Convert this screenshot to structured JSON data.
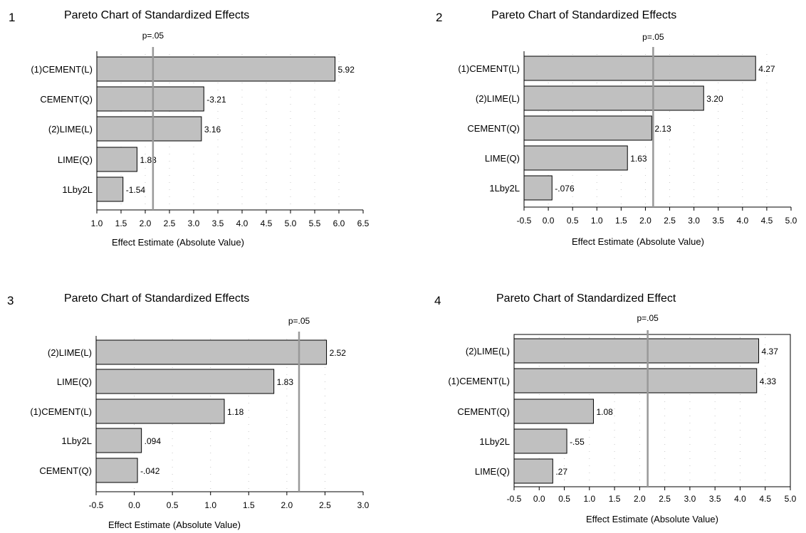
{
  "chart_data": [
    {
      "type": "bar",
      "orientation": "horizontal",
      "panel_number": "1",
      "title": "Pareto Chart of Standardized Effects",
      "categories": [
        "(1)CEMENT(L)",
        "CEMENT(Q)",
        "(2)LIME(L)",
        "LIME(Q)",
        "1Lby2L"
      ],
      "values": [
        5.92,
        3.21,
        3.16,
        1.83,
        1.54
      ],
      "value_labels": [
        "5.92",
        "-3.21",
        "3.16",
        "1.83",
        "-1.54"
      ],
      "xlim": [
        1.0,
        6.5
      ],
      "xticks": [
        "1.0",
        "1.5",
        "2.0",
        "2.5",
        "3.0",
        "3.5",
        "4.0",
        "4.5",
        "5.0",
        "5.5",
        "6.0",
        "6.5"
      ],
      "xlabel": "Effect Estimate (Absolute Value)",
      "reference_line": {
        "label": "p=.05",
        "value": 2.16
      },
      "bar_color": "#c0c0c0",
      "frame": false
    },
    {
      "type": "bar",
      "orientation": "horizontal",
      "panel_number": "2",
      "title": "Pareto Chart of Standardized Effects",
      "categories": [
        "(1)CEMENT(L)",
        "(2)LIME(L)",
        "CEMENT(Q)",
        "LIME(Q)",
        "1Lby2L"
      ],
      "values": [
        4.27,
        3.2,
        2.13,
        1.63,
        0.076
      ],
      "value_labels": [
        "4.27",
        "3.20",
        "2.13",
        "1.63",
        "-.076"
      ],
      "xlim": [
        -0.5,
        5.0
      ],
      "xticks": [
        "-0.5",
        "0.0",
        "0.5",
        "1.0",
        "1.5",
        "2.0",
        "2.5",
        "3.0",
        "3.5",
        "4.0",
        "4.5",
        "5.0"
      ],
      "xlabel": "Effect Estimate (Absolute Value)",
      "reference_line": {
        "label": "p=.05",
        "value": 2.16
      },
      "bar_color": "#c0c0c0",
      "frame": false
    },
    {
      "type": "bar",
      "orientation": "horizontal",
      "panel_number": "3",
      "title": "Pareto Chart of Standardized Effects",
      "categories": [
        "(2)LIME(L)",
        "LIME(Q)",
        "(1)CEMENT(L)",
        "1Lby2L",
        "CEMENT(Q)"
      ],
      "values": [
        2.52,
        1.83,
        1.18,
        0.094,
        0.042
      ],
      "value_labels": [
        "2.52",
        "1.83",
        "1.18",
        ".094",
        "-.042"
      ],
      "xlim": [
        -0.5,
        3.0
      ],
      "xticks": [
        "-0.5",
        "0.0",
        "0.5",
        "1.0",
        "1.5",
        "2.0",
        "2.5",
        "3.0"
      ],
      "xlabel": "Effect Estimate (Absolute Value)",
      "reference_line": {
        "label": "p=.05",
        "value": 2.16
      },
      "bar_color": "#c0c0c0",
      "frame": false
    },
    {
      "type": "bar",
      "orientation": "horizontal",
      "panel_number": "4",
      "title": "Pareto Chart of Standardized Effect",
      "categories": [
        "(2)LIME(L)",
        "(1)CEMENT(L)",
        "CEMENT(Q)",
        "1Lby2L",
        "LIME(Q)"
      ],
      "values": [
        4.37,
        4.33,
        1.08,
        0.55,
        0.27
      ],
      "value_labels": [
        "4.37",
        "4.33",
        "1.08",
        "-.55",
        ".27"
      ],
      "xlim": [
        -0.5,
        5.0
      ],
      "xticks": [
        "-0.5",
        "0.0",
        "0.5",
        "1.0",
        "1.5",
        "2.0",
        "2.5",
        "3.0",
        "3.5",
        "4.0",
        "4.5",
        "5.0"
      ],
      "xlabel": "Effect Estimate (Absolute Value)",
      "reference_line": {
        "label": "p=.05",
        "value": 2.16
      },
      "bar_color": "#c0c0c0",
      "frame": true
    }
  ]
}
